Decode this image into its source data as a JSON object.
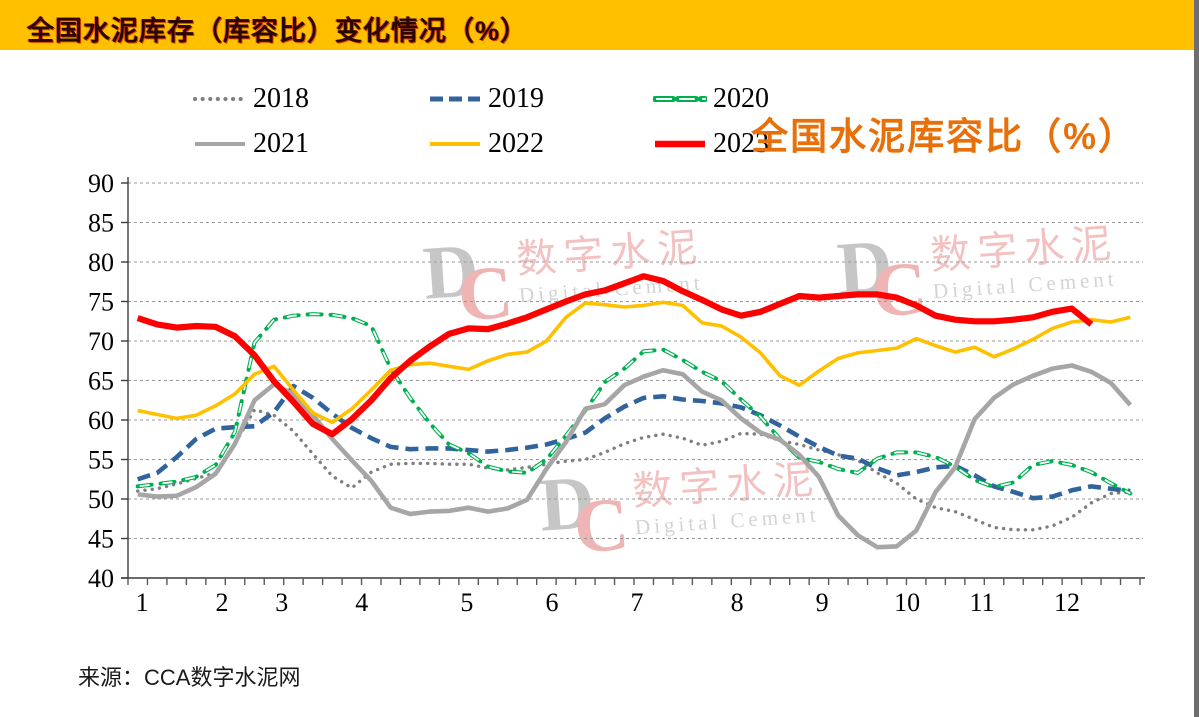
{
  "header": {
    "title": "全国水泥库存（库容比）变化情况（%）",
    "bg_color": "#FFC000"
  },
  "chart_title": {
    "text": "全国水泥库容比（%）",
    "color": "#E8700A"
  },
  "source": {
    "text": "来源：CCA数字水泥网"
  },
  "watermark": {
    "d": "D",
    "c": "C",
    "cn": "数字水泥",
    "en": "Digital Cement"
  },
  "legend": {
    "items": [
      {
        "label": "2018",
        "color": "#7F7F7F",
        "style": "dotted"
      },
      {
        "label": "2019",
        "color": "#31639C",
        "style": "dashed"
      },
      {
        "label": "2020",
        "color": "#00B050",
        "style": "hollow-dash"
      },
      {
        "label": "2021",
        "color": "#A6A6A6",
        "style": "solid"
      },
      {
        "label": "2022",
        "color": "#FFC000",
        "style": "solid"
      },
      {
        "label": "2023",
        "color": "#FF0000",
        "style": "solid-thick"
      }
    ]
  },
  "chart_data": {
    "type": "line",
    "title": "全国水泥库容比（%）",
    "x_unit": "week-of-year",
    "weeks": 52,
    "xlabel": "month",
    "ylabel": "库容比 (%)",
    "ylim": [
      40,
      90
    ],
    "ytick_step": 5,
    "grid": "dashed-horizontal",
    "legend_position": "top",
    "month_labels": [
      "1",
      "2",
      "3",
      "4",
      "5",
      "6",
      "7",
      "8",
      "9",
      "10",
      "11",
      "12"
    ],
    "month_positions": [
      0.007,
      0.086,
      0.145,
      0.224,
      0.328,
      0.412,
      0.496,
      0.595,
      0.679,
      0.763,
      0.837,
      0.921
    ],
    "series": [
      {
        "name": "2018",
        "color": "#7F7F7F",
        "style": "dotted",
        "width": 3.4,
        "values": [
          51.0,
          51.3,
          51.9,
          52.6,
          53.3,
          57.0,
          61.3,
          60.6,
          58.6,
          55.7,
          52.9,
          51.4,
          53.4,
          54.4,
          54.5,
          54.5,
          54.4,
          54.4,
          53.9,
          53.7,
          54.0,
          54.4,
          54.8,
          55.0,
          55.9,
          57.0,
          57.8,
          58.2,
          57.7,
          56.8,
          57.3,
          58.3,
          58.2,
          57.4,
          56.9,
          56.2,
          55.6,
          54.9,
          53.3,
          52.0,
          50.0,
          48.9,
          48.4,
          47.4,
          46.4,
          46.1,
          46.1,
          46.6,
          47.7,
          49.5,
          50.7,
          50.9
        ]
      },
      {
        "name": "2019",
        "color": "#31639C",
        "style": "dashed",
        "width": 4.6,
        "values": [
          52.5,
          53.3,
          55.3,
          57.6,
          58.9,
          59.1,
          59.2,
          61.0,
          64.3,
          62.8,
          60.8,
          59.0,
          57.7,
          56.6,
          56.3,
          56.4,
          56.4,
          56.2,
          56.0,
          56.2,
          56.5,
          56.9,
          57.6,
          58.4,
          60.2,
          61.7,
          62.8,
          63.0,
          62.6,
          62.4,
          62.1,
          61.6,
          60.6,
          59.3,
          57.9,
          56.6,
          55.5,
          55.1,
          53.9,
          53.0,
          53.4,
          54.0,
          54.2,
          53.0,
          51.6,
          50.9,
          50.1,
          50.3,
          51.1,
          51.6,
          51.3,
          51.0
        ]
      },
      {
        "name": "2020",
        "color": "#00B050",
        "style": "hollow-dash",
        "width": 4.0,
        "values": [
          51.6,
          51.9,
          52.2,
          52.8,
          54.3,
          58.5,
          69.8,
          72.7,
          73.2,
          73.4,
          73.3,
          72.9,
          71.9,
          66.5,
          62.8,
          59.6,
          56.9,
          55.8,
          54.1,
          53.5,
          53.3,
          55.0,
          58.0,
          61.2,
          64.8,
          66.5,
          68.7,
          68.9,
          67.6,
          66.1,
          64.9,
          62.6,
          60.4,
          57.6,
          55.2,
          54.7,
          53.8,
          53.3,
          55.1,
          55.9,
          55.9,
          55.3,
          54.1,
          52.4,
          51.5,
          52.1,
          54.3,
          54.8,
          54.3,
          53.4,
          52.0,
          50.7
        ]
      },
      {
        "name": "2021",
        "color": "#A6A6A6",
        "style": "solid",
        "width": 4.6,
        "values": [
          50.6,
          50.3,
          50.4,
          51.5,
          53.2,
          57.0,
          62.5,
          64.5,
          63.3,
          60.6,
          57.6,
          54.9,
          52.3,
          48.9,
          48.1,
          48.4,
          48.5,
          48.9,
          48.4,
          48.8,
          49.9,
          53.8,
          57.2,
          61.4,
          62.0,
          64.4,
          65.5,
          66.3,
          65.8,
          63.6,
          62.5,
          60.2,
          58.4,
          57.5,
          55.6,
          52.8,
          47.9,
          45.4,
          43.9,
          44.0,
          46.0,
          50.9,
          54.0,
          60.1,
          62.8,
          64.5,
          65.6,
          66.5,
          66.9,
          66.1,
          64.7,
          61.9
        ]
      },
      {
        "name": "2022",
        "color": "#FFC000",
        "style": "solid",
        "width": 3.6,
        "values": [
          61.2,
          60.7,
          60.2,
          60.6,
          61.8,
          63.3,
          65.8,
          66.8,
          63.8,
          60.9,
          59.7,
          61.4,
          63.8,
          66.3,
          67.0,
          67.2,
          66.8,
          66.4,
          67.5,
          68.3,
          68.6,
          70.0,
          73.0,
          74.8,
          74.6,
          74.3,
          74.5,
          74.9,
          74.5,
          72.3,
          71.9,
          70.5,
          68.5,
          65.6,
          64.4,
          66.2,
          67.8,
          68.5,
          68.8,
          69.1,
          70.3,
          69.4,
          68.6,
          69.2,
          68.0,
          69.0,
          70.2,
          71.6,
          72.4,
          72.7,
          72.4,
          73.0
        ]
      },
      {
        "name": "2023",
        "color": "#FF0000",
        "style": "solid-thick",
        "width": 6.2,
        "values": [
          72.9,
          72.1,
          71.7,
          71.9,
          71.8,
          70.6,
          68.2,
          64.9,
          62.3,
          59.5,
          58.2,
          60.1,
          62.5,
          65.3,
          67.5,
          69.3,
          70.9,
          71.6,
          71.5,
          72.2,
          73.0,
          74.0,
          75.0,
          75.9,
          76.4,
          77.3,
          78.2,
          77.6,
          76.3,
          75.2,
          74.0,
          73.2,
          73.7,
          74.7,
          75.7,
          75.5,
          75.7,
          75.9,
          75.9,
          75.5,
          74.5,
          73.2,
          72.7,
          72.5,
          72.5,
          72.7,
          73.0,
          73.7,
          74.1,
          72.1
        ]
      }
    ]
  }
}
